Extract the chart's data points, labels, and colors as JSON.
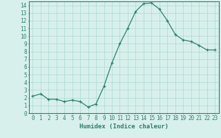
{
  "xlabel": "Humidex (Indice chaleur)",
  "x": [
    0,
    1,
    2,
    3,
    4,
    5,
    6,
    7,
    8,
    9,
    10,
    11,
    12,
    13,
    14,
    15,
    16,
    17,
    18,
    19,
    20,
    21,
    22,
    23
  ],
  "y": [
    2.2,
    2.5,
    1.8,
    1.8,
    1.5,
    1.7,
    1.5,
    0.8,
    1.2,
    3.5,
    6.5,
    9.0,
    11.0,
    13.2,
    14.2,
    14.3,
    13.5,
    12.0,
    10.2,
    9.5,
    9.3,
    8.8,
    8.2,
    8.2
  ],
  "ylim": [
    0,
    14.5
  ],
  "xlim": [
    -0.5,
    23.5
  ],
  "yticks": [
    0,
    1,
    2,
    3,
    4,
    5,
    6,
    7,
    8,
    9,
    10,
    11,
    12,
    13,
    14
  ],
  "xticks": [
    0,
    1,
    2,
    3,
    4,
    5,
    6,
    7,
    8,
    9,
    10,
    11,
    12,
    13,
    14,
    15,
    16,
    17,
    18,
    19,
    20,
    21,
    22,
    23
  ],
  "line_color": "#2e7d6e",
  "marker": "+",
  "bg_color": "#d8f0ec",
  "grid_color": "#aad8d0",
  "font_color": "#2e7d6e",
  "label_fontsize": 6.5,
  "tick_fontsize": 5.5
}
